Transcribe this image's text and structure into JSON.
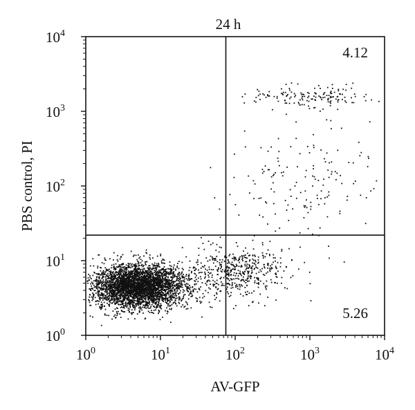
{
  "chart_data": {
    "type": "scatter",
    "title": "24 h",
    "xlabel": "AV-GFP",
    "ylabel": "PBS control, PI",
    "x_scale": "log",
    "y_scale": "log",
    "xlim": [
      1,
      10000
    ],
    "ylim": [
      1,
      10000
    ],
    "x_ticks": [
      {
        "base": "10",
        "exp": "0"
      },
      {
        "base": "10",
        "exp": "1"
      },
      {
        "base": "10",
        "exp": "2"
      },
      {
        "base": "10",
        "exp": "3"
      },
      {
        "base": "10",
        "exp": "4"
      }
    ],
    "y_ticks": [
      {
        "base": "10",
        "exp": "0"
      },
      {
        "base": "10",
        "exp": "1"
      },
      {
        "base": "10",
        "exp": "2"
      },
      {
        "base": "10",
        "exp": "3"
      },
      {
        "base": "10",
        "exp": "4"
      }
    ],
    "gates": {
      "x": 75,
      "y": 22
    },
    "quadrant_labels": {
      "upper_right": "4.12",
      "lower_right": "5.26"
    },
    "grid": false,
    "point_color": "#111111",
    "clusters": [
      {
        "region": "lower-left main population",
        "n": 3800,
        "log_x_center": 0.7,
        "log_x_sd": 0.32,
        "log_y_center": 0.65,
        "log_y_sd": 0.15
      },
      {
        "region": "lower-right tail",
        "n": 500,
        "log_x_center": 2.0,
        "log_x_sd": 0.35,
        "log_y_center": 0.85,
        "log_y_sd": 0.18
      },
      {
        "region": "upper-right top band",
        "n": 150,
        "log_x_center": 3.0,
        "log_x_sd": 0.4,
        "log_y_center": 3.2,
        "log_y_sd": 0.08
      },
      {
        "region": "upper-right middle",
        "n": 160,
        "log_x_center": 2.9,
        "log_x_sd": 0.5,
        "log_y_center": 2.1,
        "log_y_sd": 0.4
      }
    ]
  }
}
